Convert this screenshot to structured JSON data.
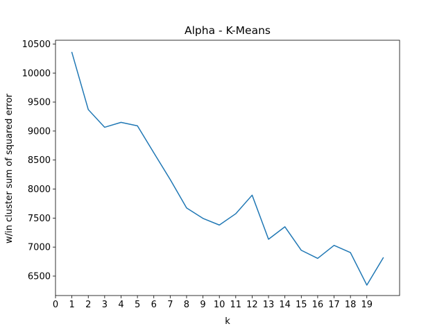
{
  "chart_data": {
    "type": "line",
    "title": "Alpha - K-Means",
    "xlabel": "k",
    "ylabel": "w/in cluster sum of squared error",
    "x": [
      1,
      2,
      3,
      4,
      5,
      6,
      7,
      8,
      9,
      10,
      11,
      12,
      13,
      14,
      15,
      16,
      17,
      18,
      19,
      20
    ],
    "series": [
      {
        "values": [
          10355,
          9370,
          9065,
          9150,
          9090,
          8625,
          8165,
          7675,
          7495,
          7380,
          7575,
          7895,
          7135,
          7350,
          6945,
          6805,
          7030,
          6905,
          6345,
          6815
        ],
        "color": "#1f77b4"
      }
    ],
    "xticks": [
      0,
      1,
      2,
      3,
      4,
      5,
      6,
      7,
      8,
      9,
      10,
      11,
      12,
      13,
      14,
      15,
      16,
      17,
      18,
      19
    ],
    "yticks": [
      6500,
      7000,
      7500,
      8000,
      8500,
      9000,
      9500,
      10000,
      10500
    ],
    "xlim": [
      0,
      21
    ],
    "ylim": [
      6165,
      10565
    ],
    "grid": false,
    "legend": "none"
  }
}
